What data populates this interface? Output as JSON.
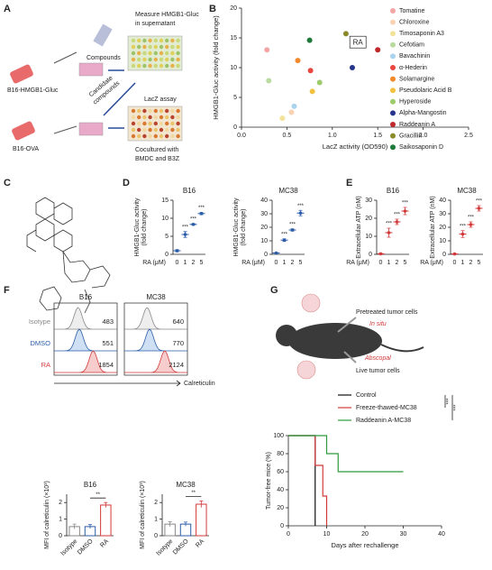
{
  "figure": {
    "panel_labels": [
      "A",
      "B",
      "C",
      "D",
      "E",
      "F",
      "G"
    ]
  },
  "panel_a": {
    "compounds": "Compounds",
    "measure": [
      "Measure HMGB1-Gluc",
      "in supernatant"
    ],
    "cell1": "B16-HMGB1-Gluc",
    "candidate": [
      "Candidate",
      "compounds"
    ],
    "lacz": "LacZ assay",
    "cell2": "B16-OVA",
    "coculture": [
      "Cocultured with",
      "BMDC and B3Z"
    ]
  },
  "panel_f_flow": {
    "x_label": "Calreticulin",
    "rows": [
      "Isotype",
      "DMSO",
      "RA"
    ],
    "panels": [
      {
        "title": "B16",
        "values": [
          483,
          551,
          1854
        ]
      },
      {
        "title": "MC38",
        "values": [
          640,
          770,
          2124
        ]
      }
    ]
  },
  "panel_g_diagram": {
    "pretreated": "Pretreated tumor cells",
    "in_situ": "In situ",
    "abscopal": "Abscopal",
    "live": "Live tumor cells"
  },
  "chart_data": [
    {
      "type": "scatter",
      "xlabel": "LacZ activity (OD590)",
      "ylabel": "HMGB1-Gluc activity (fold change)",
      "annotation": "RA",
      "xlim": [
        0,
        2.5
      ],
      "xticks": [
        {
          "value": 0,
          "label": "0.0"
        },
        {
          "value": 0.5,
          "label": "0.5"
        },
        {
          "value": 1,
          "label": "1.0"
        },
        {
          "value": 1.5,
          "label": "1.5"
        },
        {
          "value": 2,
          "label": "2.0"
        },
        {
          "value": 2.5,
          "label": "2.5"
        }
      ],
      "ylim": [
        0,
        20
      ],
      "yticks": [
        0,
        5,
        10,
        15,
        20
      ],
      "series": [
        {
          "name": "Tomatine",
          "color": "#f4a6a6",
          "x": [
            0.28
          ],
          "values": [
            13
          ]
        },
        {
          "name": "Chloroxine",
          "color": "#f9d3b4",
          "x": [
            0.55
          ],
          "values": [
            2.5
          ]
        },
        {
          "name": "Timosaponin A3",
          "color": "#f3e39a",
          "x": [
            0.45
          ],
          "values": [
            1.5
          ]
        },
        {
          "name": "Cefotiam",
          "color": "#b9dba0",
          "x": [
            0.3
          ],
          "values": [
            7.8
          ]
        },
        {
          "name": "Bavachinin",
          "color": "#aad4ee",
          "x": [
            0.58
          ],
          "values": [
            3.5
          ]
        },
        {
          "name": "α-Hederin",
          "color": "#e8463f",
          "x": [
            0.76
          ],
          "values": [
            9.5
          ]
        },
        {
          "name": "Solamargine",
          "color": "#f08a2c",
          "x": [
            0.62
          ],
          "values": [
            11.2
          ]
        },
        {
          "name": "Pseudolaric Acid B",
          "color": "#f2c141",
          "x": [
            0.78
          ],
          "values": [
            6
          ]
        },
        {
          "name": "Hyperoside",
          "color": "#9ccb6a",
          "x": [
            0.86
          ],
          "values": [
            7.5
          ]
        },
        {
          "name": "Alpha-Mangostin",
          "color": "#27348b",
          "x": [
            1.22
          ],
          "values": [
            10
          ]
        },
        {
          "name": "Raddeanin A",
          "color": "#c0282b",
          "x": [
            1.5
          ],
          "values": [
            13
          ]
        },
        {
          "name": "Gracillin",
          "color": "#8a8a2a",
          "x": [
            1.15
          ],
          "values": [
            15.7
          ]
        },
        {
          "name": "Saikosaponin D",
          "color": "#1f7a3a",
          "x": [
            0.75
          ],
          "values": [
            14.6
          ]
        }
      ]
    },
    {
      "type": "dot",
      "title": "B16",
      "ylabel": [
        "HMGB1-Gluc activity",
        "(fold change)"
      ],
      "xlabel": "RA (μM)",
      "categories": [
        "0",
        "1",
        "2",
        "5"
      ],
      "values": [
        1,
        5.5,
        8.3,
        11.3
      ],
      "errors": [
        0.3,
        0.8,
        0.2,
        0.3
      ],
      "significance": [
        null,
        "***",
        "***",
        "***"
      ],
      "color": "#2a5ca8",
      "ylim": [
        0,
        15
      ],
      "yticks": [
        0,
        5,
        10,
        15
      ]
    },
    {
      "type": "dot",
      "title": "MC38",
      "ylabel": [
        "HMGB1-Gluc activity",
        "(fold change)"
      ],
      "xlabel": "RA (μM)",
      "categories": [
        "0",
        "1",
        "2",
        "5"
      ],
      "values": [
        1,
        10.5,
        18,
        30.5
      ],
      "errors": [
        0.3,
        1,
        0.8,
        2
      ],
      "significance": [
        null,
        "***",
        "***",
        "***"
      ],
      "color": "#2a5ca8",
      "ylim": [
        0,
        40
      ],
      "yticks": [
        0,
        10,
        20,
        30,
        40
      ]
    },
    {
      "type": "dot",
      "title": "B16",
      "ylabel": [
        "Extracellular ATP (nM)"
      ],
      "xlabel": "RA (μM)",
      "categories": [
        "0",
        "1",
        "2",
        "5"
      ],
      "values": [
        0.3,
        12,
        18,
        24
      ],
      "errors": [
        0.3,
        2.5,
        1.5,
        2
      ],
      "significance": [
        null,
        "***",
        "***",
        "***"
      ],
      "color": "#d23a3a",
      "ylim": [
        0,
        30
      ],
      "yticks": [
        0,
        10,
        20,
        30
      ]
    },
    {
      "type": "dot",
      "title": "MC38",
      "ylabel": [
        "Extracellular ATP (nM)"
      ],
      "xlabel": "RA (μM)",
      "categories": [
        "0",
        "1",
        "2",
        "5"
      ],
      "values": [
        0.3,
        15,
        22,
        34
      ],
      "errors": [
        0.3,
        2.5,
        2,
        2
      ],
      "significance": [
        null,
        "***",
        "***",
        "***"
      ],
      "color": "#d23a3a",
      "ylim": [
        0,
        40
      ],
      "yticks": [
        0,
        10,
        20,
        30,
        40
      ]
    },
    {
      "type": "bar",
      "title": "B16",
      "ylabel": [
        "MFI of calreticulin (×10³)"
      ],
      "categories": [
        "Isotype",
        "DMSO",
        "RA"
      ],
      "values": [
        0.55,
        0.55,
        1.85
      ],
      "errors": [
        0.15,
        0.12,
        0.15
      ],
      "colors": [
        "#888888",
        "#2a5ca8",
        "#d23a3a"
      ],
      "annotation": "**",
      "ylim": [
        0,
        2.5
      ],
      "yticks": [
        0,
        1,
        2
      ]
    },
    {
      "type": "bar",
      "title": "MC38",
      "ylabel": [
        "MFI of calreticulin (×10³)"
      ],
      "categories": [
        "Isotype",
        "DMSO",
        "RA"
      ],
      "values": [
        0.7,
        0.7,
        1.9
      ],
      "errors": [
        0.15,
        0.12,
        0.2
      ],
      "colors": [
        "#888888",
        "#2a5ca8",
        "#d23a3a"
      ],
      "annotation": "**",
      "ylim": [
        0,
        2.5
      ],
      "yticks": [
        0,
        1,
        2
      ]
    },
    {
      "type": "line",
      "xlabel": "Days after rechallenge",
      "ylabel": [
        "Tumor-free mice (%)"
      ],
      "xlim": [
        0,
        40
      ],
      "xticks": [
        0,
        10,
        20,
        30,
        40
      ],
      "ylim": [
        0,
        100
      ],
      "yticks": [
        0,
        20,
        40,
        60,
        80,
        100
      ],
      "annotations": [
        "***",
        "***"
      ],
      "series": [
        {
          "name": "Control",
          "color": "#111111",
          "x": [
            0,
            7
          ],
          "values": [
            100,
            0
          ]
        },
        {
          "name": "Freeze-thawed-MC38",
          "color": "#d23a3a",
          "x": [
            0,
            7,
            9,
            10
          ],
          "values": [
            100,
            67,
            33,
            0
          ]
        },
        {
          "name": "Raddeanin A-MC38",
          "color": "#2e9a3e",
          "x": [
            0,
            10,
            13,
            30
          ],
          "values": [
            100,
            80,
            60,
            60
          ]
        }
      ]
    }
  ]
}
